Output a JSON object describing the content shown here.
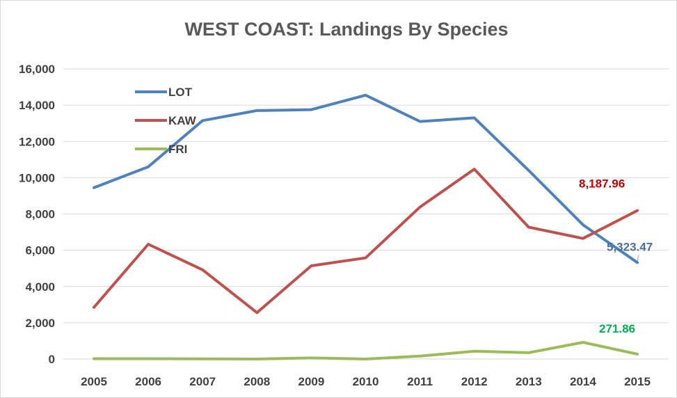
{
  "chart_data": {
    "type": "line",
    "title": "WEST COAST: Landings By Species",
    "xlabel": "",
    "ylabel": "",
    "x": [
      "2005",
      "2006",
      "2007",
      "2008",
      "2009",
      "2010",
      "2011",
      "2012",
      "2013",
      "2014",
      "2015"
    ],
    "ylim": [
      0,
      16000
    ],
    "yticks": [
      0,
      2000,
      4000,
      6000,
      8000,
      10000,
      12000,
      14000,
      16000
    ],
    "ytick_labels": [
      "0",
      "2,000",
      "4,000",
      "6,000",
      "8,000",
      "10,000",
      "12,000",
      "14,000",
      "16,000"
    ],
    "grid": true,
    "legend": "top-left",
    "series": [
      {
        "name": "LOT",
        "color": "#4f81bd",
        "values": [
          9450,
          10600,
          13150,
          13700,
          13750,
          14550,
          13100,
          13300,
          10400,
          7400,
          5323.47
        ],
        "end_label": "5,323.47",
        "end_label_color": "#4a6f9c"
      },
      {
        "name": "KAW",
        "color": "#c0504d",
        "values": [
          2850,
          6330,
          4920,
          2560,
          5140,
          5580,
          8380,
          10470,
          7270,
          6650,
          8187.96
        ],
        "end_label": "8,187.96",
        "end_label_color": "#c00000"
      },
      {
        "name": "FRI",
        "color": "#9bbb59",
        "values": [
          20,
          20,
          10,
          0,
          60,
          0,
          160,
          430,
          350,
          920,
          271.86
        ],
        "end_label": "271.86",
        "end_label_color": "#00b050"
      }
    ]
  }
}
